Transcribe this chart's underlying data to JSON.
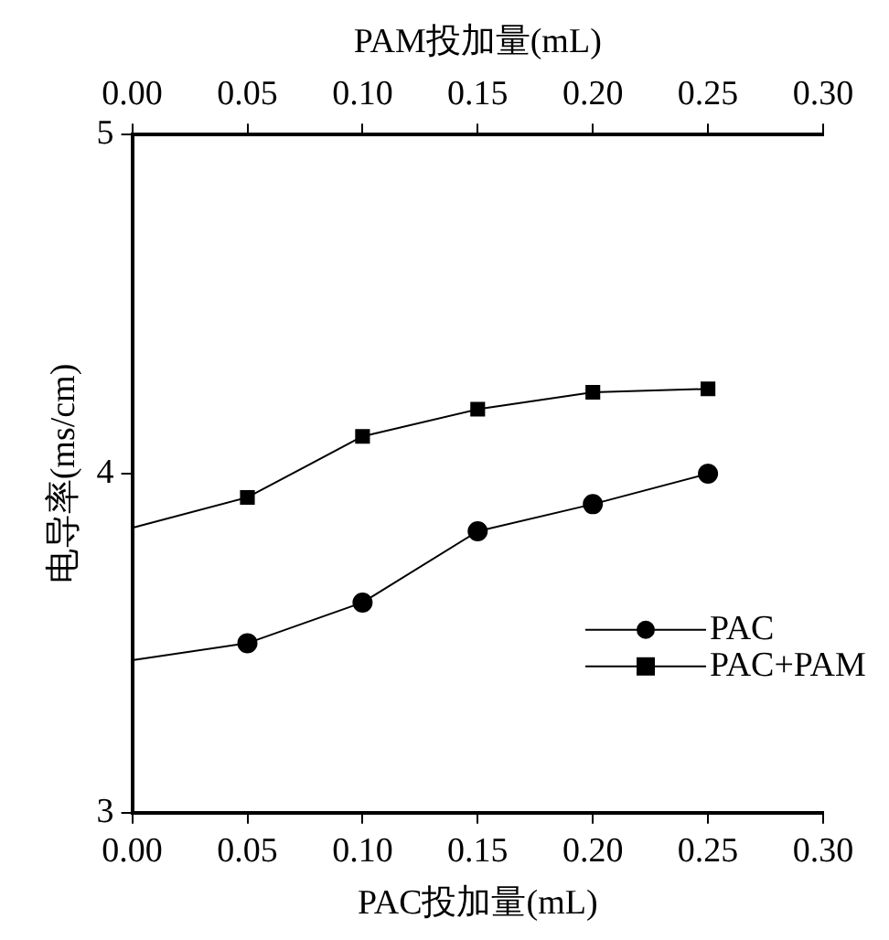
{
  "chart_data": {
    "type": "line",
    "xlabel": "PAC投加量(mL)",
    "x2label": "PAM投加量(mL)",
    "ylabel": "电导率(ms/cm)",
    "x": [
      0,
      0.05,
      0.1,
      0.15,
      0.2,
      0.25
    ],
    "xlim": [
      0,
      0.3
    ],
    "xticks": [
      {
        "value": 0,
        "label": "0.00"
      },
      {
        "value": 0.05,
        "label": "0.05"
      },
      {
        "value": 0.1,
        "label": "0.10"
      },
      {
        "value": 0.15,
        "label": "0.15"
      },
      {
        "value": 0.2,
        "label": "0.20"
      },
      {
        "value": 0.25,
        "label": "0.25"
      },
      {
        "value": 0.3,
        "label": "0.30"
      }
    ],
    "x2lim": [
      0,
      0.3
    ],
    "x2ticks": [
      {
        "value": 0,
        "label": "0.00"
      },
      {
        "value": 0.05,
        "label": "0.05"
      },
      {
        "value": 0.1,
        "label": "0.10"
      },
      {
        "value": 0.15,
        "label": "0.15"
      },
      {
        "value": 0.2,
        "label": "0.20"
      },
      {
        "value": 0.25,
        "label": "0.25"
      },
      {
        "value": 0.3,
        "label": "0.30"
      }
    ],
    "ylim": [
      3,
      5
    ],
    "yticks": [
      3,
      4,
      5
    ],
    "grid": false,
    "legend": "bottom right",
    "line_style": "solid",
    "series": [
      {
        "name": "PAC",
        "color": "#000000",
        "marker": "circle",
        "values": [
          3.45,
          3.5,
          3.62,
          3.83,
          3.91,
          4.0
        ]
      },
      {
        "name": "PAC+PAM",
        "color": "#000000",
        "marker": "square",
        "values": [
          3.84,
          3.93,
          4.11,
          4.19,
          4.24,
          4.25
        ]
      }
    ]
  }
}
